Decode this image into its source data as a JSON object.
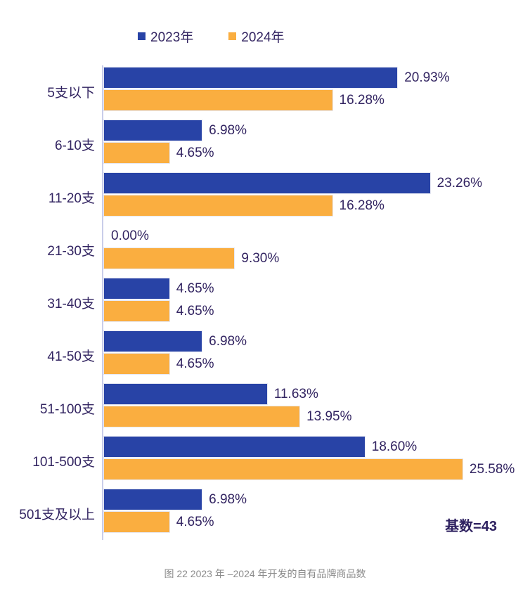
{
  "legend": {
    "items": [
      {
        "label": "2023年",
        "color": "#2843A6"
      },
      {
        "label": "2024年",
        "color": "#FAAE40"
      }
    ]
  },
  "chart_data": {
    "type": "bar",
    "orientation": "horizontal",
    "title": "",
    "categories": [
      "5支以下",
      "6-10支",
      "11-20支",
      "21-30支",
      "31-40支",
      "41-50支",
      "51-100支",
      "101-500支",
      "501支及以上"
    ],
    "series": [
      {
        "name": "2023年",
        "color": "#2843A6",
        "values": [
          20.93,
          6.98,
          23.26,
          0.0,
          4.65,
          6.98,
          11.63,
          18.6,
          6.98
        ]
      },
      {
        "name": "2024年",
        "color": "#FAAE40",
        "values": [
          16.28,
          4.65,
          16.28,
          9.3,
          4.65,
          4.65,
          13.95,
          25.58,
          4.65
        ]
      }
    ],
    "value_format": "0.00%",
    "xlim": [
      0,
      30
    ],
    "grid": false,
    "legend_position": "top",
    "base_note": "基数=43",
    "caption": "图 22 2023 年 –2024 年开发的自有品牌商品数"
  },
  "colors": {
    "text": "#322461",
    "axis_line": "#C9CDE9",
    "caption_text": "#8C8C8C",
    "background": "#FFFFFF"
  }
}
